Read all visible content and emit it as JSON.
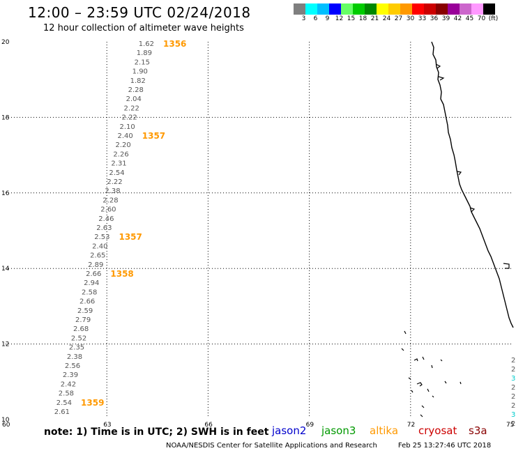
{
  "title": "12:00 – 23:59 UTC 02/24/2018",
  "subtitle": "12 hour collection of altimeter wave heights",
  "legend": {
    "colors": [
      "#7f7f7f",
      "#00ffff",
      "#00bfff",
      "#0000ff",
      "#66ff66",
      "#00cc00",
      "#008800",
      "#ffff00",
      "#ffcc00",
      "#ff9900",
      "#ff0000",
      "#cc0000",
      "#880000",
      "#990099",
      "#cc66cc",
      "#ff99ff",
      "#000000"
    ],
    "labels": [
      "3",
      "6",
      "9",
      "12",
      "15",
      "18",
      "21",
      "24",
      "27",
      "30",
      "33",
      "36",
      "39",
      "42",
      "45",
      "70",
      "(ft)"
    ]
  },
  "axes": {
    "lat_labels": [
      "20",
      "18",
      "16",
      "14",
      "12",
      "10"
    ],
    "lon_labels": [
      "60",
      "63",
      "66",
      "69",
      "72",
      "75"
    ]
  },
  "track": {
    "swh_ft": [
      "1.62",
      "1.89",
      "2.15",
      "1.90",
      "1.82",
      "2.28",
      "2.04",
      "2.22",
      "2.22",
      "2.10",
      "2.40",
      "2.20",
      "2.26",
      "2.31",
      "2.54",
      "2.22",
      "2.38",
      "2.28",
      "2.60",
      "2.46",
      "2.63",
      "2.53",
      "2.40",
      "2.65",
      "2.89",
      "2.66",
      "2.94",
      "2.58",
      "2.66",
      "2.59",
      "2.79",
      "2.68",
      "2.52",
      "2.35",
      "2.38",
      "2.56",
      "2.39",
      "2.42",
      "2.58",
      "2.54",
      "2.61"
    ],
    "times": [
      "1356",
      "1357",
      "1357",
      "1358",
      "1359"
    ],
    "color": "#555555",
    "time_color": "#ff9900"
  },
  "edge_values": [
    "2",
    "2",
    "3",
    "2",
    "2",
    "2",
    "3",
    "2"
  ],
  "note": "note:  1) Time is in UTC;  2) SWH is in feet",
  "satellites": [
    {
      "name": "jason2",
      "color": "#0000cc"
    },
    {
      "name": "jason3",
      "color": "#009900"
    },
    {
      "name": "altika",
      "color": "#ff9900"
    },
    {
      "name": "cryosat",
      "color": "#cc0000"
    },
    {
      "name": "s3a",
      "color": "#880000"
    }
  ],
  "credit": "NOAA/NESDIS Center for Satellite Applications and Research",
  "timestamp": "Feb 25 13:27:46 UTC 2018"
}
